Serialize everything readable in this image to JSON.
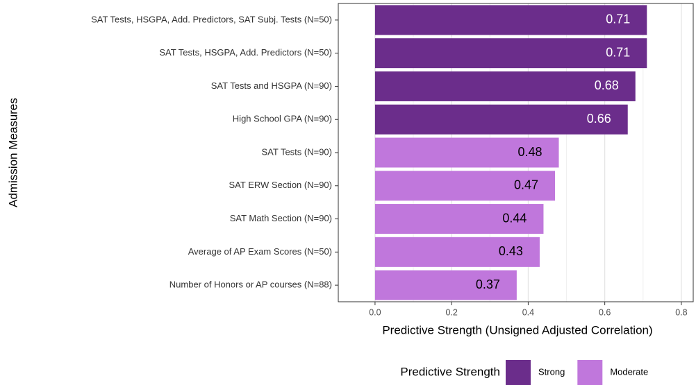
{
  "chart_data": {
    "type": "barh",
    "categories": [
      "SAT Tests, HSGPA, Add. Predictors, SAT Subj. Tests (N=50)",
      "SAT Tests, HSGPA, Add. Predictors (N=50)",
      "SAT Tests and HSGPA (N=90)",
      "High School GPA (N=90)",
      "SAT Tests (N=90)",
      "SAT ERW Section (N=90)",
      "SAT Math Section (N=90)",
      "Average of AP Exam Scores (N=50)",
      "Number of Honors or AP courses (N=88)"
    ],
    "series": [
      {
        "name": "Strong",
        "color": "#6b2d8b",
        "label_color": "#ffffff",
        "values": [
          0.71,
          0.71,
          0.68,
          0.66,
          null,
          null,
          null,
          null,
          null
        ]
      },
      {
        "name": "Moderate",
        "color": "#c077dc",
        "label_color": "#000000",
        "values": [
          null,
          null,
          null,
          null,
          0.48,
          0.47,
          0.44,
          0.43,
          0.37
        ]
      }
    ],
    "xlabel": "Predictive Strength (Unsigned Adjusted Correlation)",
    "ylabel": "Admission Measures",
    "legend_title": "Predictive Strength",
    "legend": "bottom",
    "xlim": [
      -0.096,
      0.831
    ],
    "xticks": [
      {
        "value": 0,
        "label": "0.0"
      },
      0.2,
      0.4,
      0.6,
      0.8
    ],
    "grid": true
  }
}
